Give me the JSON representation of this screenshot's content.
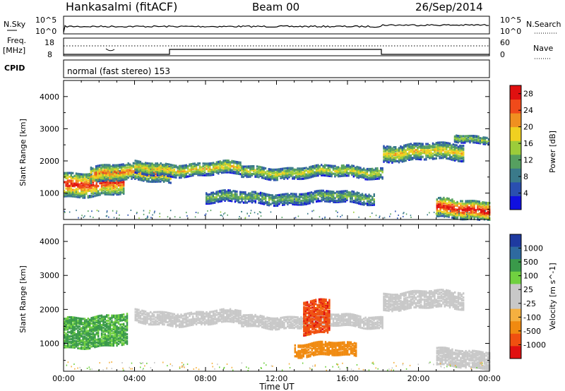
{
  "header": {
    "station": "Hankasalmi (fitACF)",
    "beam": "Beam 00",
    "date": "26/Sep/2014"
  },
  "strip_panels": {
    "nsky": {
      "left_label": "N.Sky",
      "right_label": "N.Search",
      "left_ticks": [
        "10^5",
        "10^0"
      ],
      "right_ticks": [
        "10^5",
        "10^0"
      ]
    },
    "freq": {
      "left_label_line1": "Freq.",
      "left_label_line2": "[MHz]",
      "right_label": "Nave",
      "left_ticks": [
        "18",
        "8"
      ],
      "right_ticks": [
        "60",
        "0"
      ]
    },
    "cpid": {
      "label": "CPID",
      "text": "normal (fast stereo) 153"
    }
  },
  "colors": {
    "power_scale": [
      "#1010e0",
      "#2a4fb0",
      "#3a7a8a",
      "#56a060",
      "#9ccc3a",
      "#f0d020",
      "#f09020",
      "#f04a1a",
      "#e01010"
    ],
    "velocity_scale": [
      "#e01010",
      "#f05010",
      "#f08a10",
      "#f4b040",
      "#c8c8c8",
      "#c8c8c8",
      "#70d040",
      "#3a9a4a",
      "#2e6aa0",
      "#1e3aa0"
    ],
    "ground_scatter": "#c8c8c8"
  },
  "chart_data": [
    {
      "type": "heatmap",
      "name_on_chart": "",
      "xlabel": "",
      "ylabel": "Slant Range [km]",
      "xlim_hours": [
        0,
        24
      ],
      "ylim_km": [
        180,
        4500
      ],
      "y_ticks": [
        1000,
        2000,
        3000,
        4000
      ],
      "colorbar": {
        "label": "Power [dB]",
        "ticks": [
          4,
          8,
          12,
          16,
          20,
          24,
          28
        ],
        "range": [
          0,
          30
        ]
      },
      "echo_bands": [
        {
          "from_h": 0.0,
          "to_h": 3.4,
          "center_km": 1350,
          "half_width_km": 380,
          "peak_db": 28
        },
        {
          "from_h": 1.5,
          "to_h": 6.0,
          "center_km": 1650,
          "half_width_km": 250,
          "peak_db": 24
        },
        {
          "from_h": 4.0,
          "to_h": 10.0,
          "center_km": 1800,
          "half_width_km": 200,
          "peak_db": 20
        },
        {
          "from_h": 10.0,
          "to_h": 18.0,
          "center_km": 1700,
          "half_width_km": 180,
          "peak_db": 18
        },
        {
          "from_h": 18.0,
          "to_h": 22.5,
          "center_km": 2300,
          "half_width_km": 250,
          "peak_db": 20
        },
        {
          "from_h": 22.0,
          "to_h": 24.0,
          "center_km": 2750,
          "half_width_km": 120,
          "peak_db": 16
        },
        {
          "from_h": 8.0,
          "to_h": 17.5,
          "center_km": 900,
          "half_width_km": 180,
          "peak_db": 14
        },
        {
          "from_h": 21.0,
          "to_h": 24.0,
          "center_km": 550,
          "half_width_km": 300,
          "peak_db": 30
        }
      ]
    },
    {
      "type": "heatmap",
      "name_on_chart": "",
      "xlabel": "Time UT",
      "ylabel": "Slant Range [km]",
      "xlim_hours": [
        0,
        24
      ],
      "x_tick_labels": [
        "00:00",
        "04:00",
        "08:00",
        "12:00",
        "16:00",
        "20:00",
        "00:00"
      ],
      "ylim_km": [
        180,
        4500
      ],
      "y_ticks": [
        1000,
        2000,
        3000,
        4000
      ],
      "colorbar": {
        "label": "Velocity [m s^-1]",
        "ticks": [
          1000,
          500,
          100,
          25,
          -25,
          -100,
          -500,
          -1000
        ]
      },
      "echo_bands": [
        {
          "from_h": 0.0,
          "to_h": 3.6,
          "center_km": 1400,
          "half_width_km": 450,
          "velocity": 120
        },
        {
          "from_h": 4.0,
          "to_h": 10.0,
          "center_km": 1800,
          "half_width_km": 200,
          "velocity": 0
        },
        {
          "from_h": 10.0,
          "to_h": 18.0,
          "center_km": 1700,
          "half_width_km": 180,
          "velocity": 0
        },
        {
          "from_h": 18.0,
          "to_h": 22.5,
          "center_km": 2300,
          "half_width_km": 250,
          "velocity": 0
        },
        {
          "from_h": 13.0,
          "to_h": 16.5,
          "center_km": 850,
          "half_width_km": 200,
          "velocity": -200
        },
        {
          "from_h": 21.0,
          "to_h": 24.0,
          "center_km": 600,
          "half_width_km": 250,
          "velocity": 0
        },
        {
          "from_h": 13.5,
          "to_h": 15.0,
          "center_km": 1800,
          "half_width_km": 500,
          "velocity": -800
        }
      ]
    }
  ]
}
